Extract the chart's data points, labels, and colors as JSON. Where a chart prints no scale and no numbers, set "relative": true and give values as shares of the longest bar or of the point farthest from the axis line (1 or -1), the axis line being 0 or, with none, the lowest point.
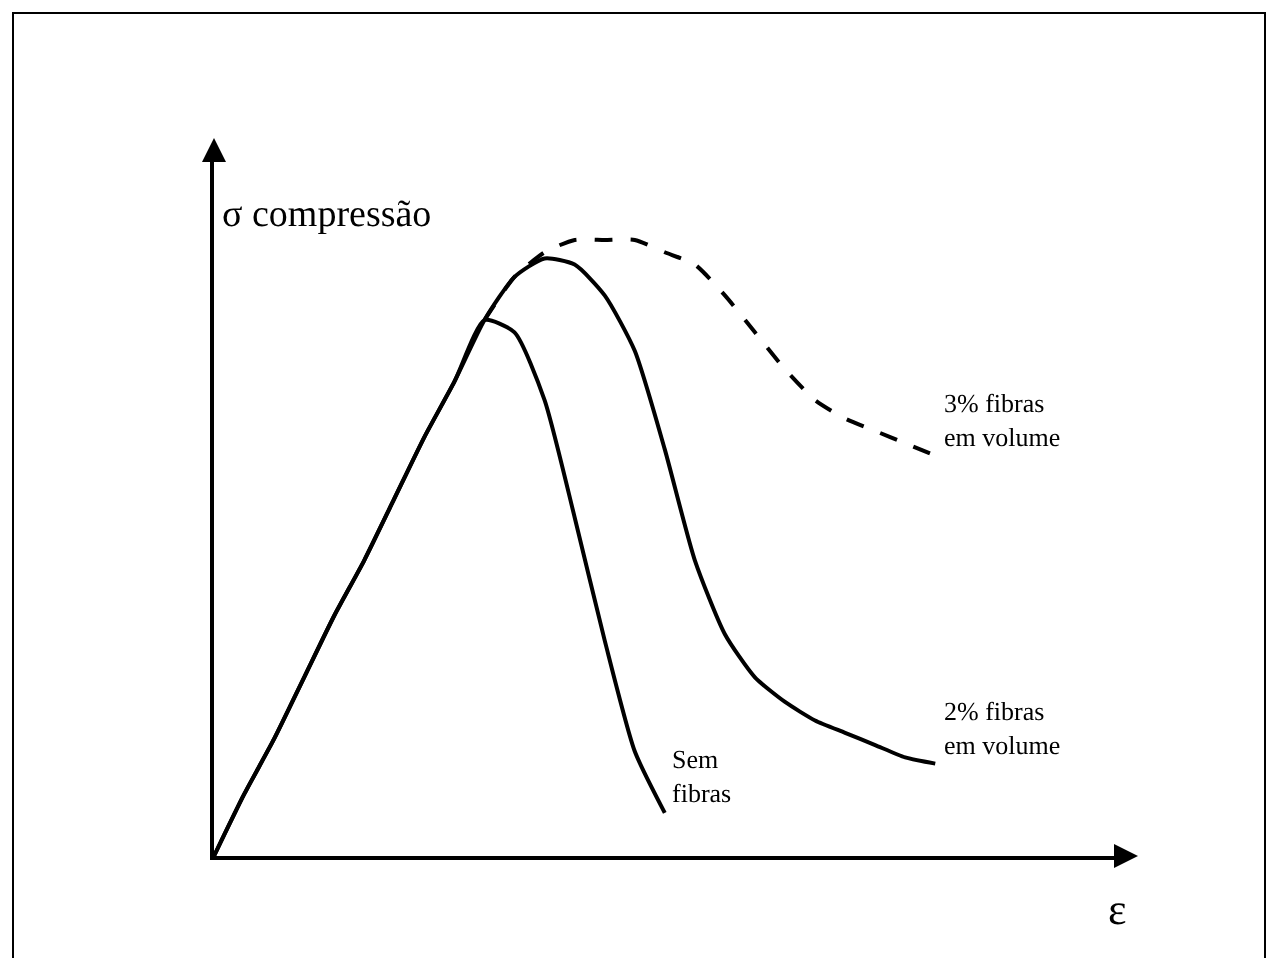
{
  "chart_data": {
    "type": "line",
    "relative": true,
    "xlabel": "ε",
    "ylabel": "σ compressão",
    "tick_labels": false,
    "categories": [
      null,
      null,
      null,
      null,
      null,
      null,
      null,
      null,
      null,
      null,
      null,
      null,
      null,
      null,
      null,
      null,
      null,
      null,
      null,
      null,
      null,
      null,
      null,
      null,
      null
    ],
    "series": [
      {
        "name": "Sem fibras",
        "color": "#000000",
        "line_style": "solid",
        "values": [
          0,
          0.1,
          0.19,
          0.29,
          0.39,
          0.48,
          0.58,
          0.68,
          0.77,
          0.87,
          0.85,
          0.74,
          0.55,
          0.35,
          0.17,
          0.07,
          null,
          null,
          null,
          null,
          null,
          null,
          null,
          null,
          null
        ]
      },
      {
        "name": "2% fibras em volume",
        "color": "#000000",
        "line_style": "solid",
        "values": [
          0,
          0.1,
          0.19,
          0.29,
          0.39,
          0.48,
          0.58,
          0.68,
          0.77,
          0.87,
          0.94,
          0.97,
          0.96,
          0.91,
          0.82,
          0.66,
          0.48,
          0.36,
          0.29,
          0.25,
          0.22,
          0.2,
          0.18,
          0.16,
          0.15
        ]
      },
      {
        "name": "3% fibras em volume",
        "color": "#000000",
        "line_style": "dashed",
        "values": [
          null,
          null,
          null,
          null,
          null,
          null,
          null,
          null,
          null,
          0.87,
          0.94,
          0.98,
          1,
          1,
          1,
          0.98,
          0.96,
          0.91,
          0.85,
          0.79,
          0.74,
          0.71,
          0.69,
          0.67,
          0.65
        ]
      }
    ]
  }
}
